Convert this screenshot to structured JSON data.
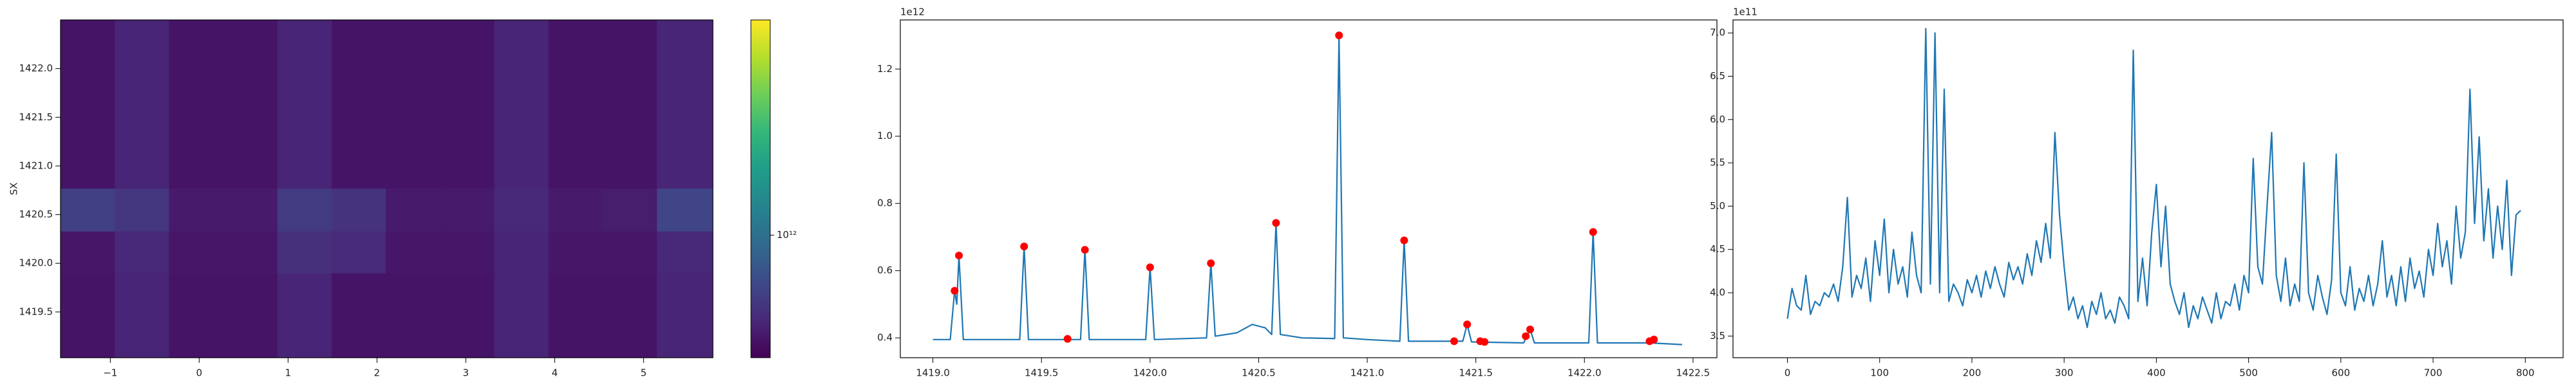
{
  "chart_data": [
    {
      "type": "heatmap",
      "ylabel": "SX",
      "xbins": [
        -1.56,
        -0.95,
        -0.34,
        0.27,
        0.88,
        1.49,
        2.1,
        2.71,
        3.32,
        3.93,
        4.54,
        5.15,
        5.78
      ],
      "ybins": [
        1419.03,
        1419.46,
        1419.9,
        1420.33,
        1420.77,
        1421.2,
        1421.63,
        1422.07,
        1422.5
      ],
      "z": [
        [
          460000000000.0,
          520000000000.0,
          460000000000.0,
          460000000000.0,
          520000000000.0,
          460000000000.0,
          460000000000.0,
          460000000000.0,
          520000000000.0,
          460000000000.0,
          460000000000.0,
          520000000000.0
        ],
        [
          460000000000.0,
          520000000000.0,
          460000000000.0,
          460000000000.0,
          520000000000.0,
          460000000000.0,
          460000000000.0,
          460000000000.0,
          520000000000.0,
          460000000000.0,
          460000000000.0,
          520000000000.0
        ],
        [
          470000000000.0,
          530000000000.0,
          470000000000.0,
          470000000000.0,
          560000000000.0,
          540000000000.0,
          470000000000.0,
          470000000000.0,
          520000000000.0,
          470000000000.0,
          470000000000.0,
          530000000000.0
        ],
        [
          650000000000.0,
          600000000000.0,
          480000000000.0,
          480000000000.0,
          620000000000.0,
          580000000000.0,
          480000000000.0,
          480000000000.0,
          530000000000.0,
          480000000000.0,
          490000000000.0,
          680000000000.0
        ],
        [
          460000000000.0,
          520000000000.0,
          460000000000.0,
          460000000000.0,
          520000000000.0,
          460000000000.0,
          460000000000.0,
          460000000000.0,
          520000000000.0,
          460000000000.0,
          460000000000.0,
          520000000000.0
        ],
        [
          460000000000.0,
          520000000000.0,
          460000000000.0,
          460000000000.0,
          520000000000.0,
          460000000000.0,
          460000000000.0,
          460000000000.0,
          520000000000.0,
          460000000000.0,
          460000000000.0,
          520000000000.0
        ],
        [
          460000000000.0,
          520000000000.0,
          460000000000.0,
          460000000000.0,
          520000000000.0,
          460000000000.0,
          460000000000.0,
          460000000000.0,
          520000000000.0,
          460000000000.0,
          460000000000.0,
          520000000000.0
        ],
        [
          460000000000.0,
          520000000000.0,
          460000000000.0,
          460000000000.0,
          520000000000.0,
          460000000000.0,
          460000000000.0,
          460000000000.0,
          520000000000.0,
          460000000000.0,
          460000000000.0,
          520000000000.0
        ]
      ],
      "colormap": "viridis",
      "zscale": "log",
      "zlim": [
        400000000000.0,
        5000000000000.0
      ],
      "zticks": [
        {
          "value": 1000000000000.0,
          "label": "10¹²"
        }
      ],
      "xlim": [
        -1.56,
        5.78
      ],
      "xticks": [
        {
          "value": -1,
          "label": "−1"
        },
        0,
        1,
        2,
        3,
        4,
        5
      ],
      "ylim": [
        1419.03,
        1422.5
      ],
      "yticks": [
        1419.5,
        {
          "value": 1420,
          "label": "1420.0"
        },
        1420.5,
        {
          "value": 1421,
          "label": "1421.0"
        },
        1421.5,
        {
          "value": 1422,
          "label": "1422.0"
        }
      ]
    },
    {
      "type": "line",
      "y_offset_label": "1e12",
      "series": [
        {
          "color": "#1f77b4",
          "x": [
            1419.0,
            1419.08,
            1419.1,
            1419.11,
            1419.12,
            1419.14,
            1419.4,
            1419.42,
            1419.44,
            1419.68,
            1419.7,
            1419.72,
            1419.98,
            1420.0,
            1420.02,
            1420.26,
            1420.28,
            1420.3,
            1420.4,
            1420.47,
            1420.53,
            1420.56,
            1420.58,
            1420.6,
            1420.7,
            1420.85,
            1420.87,
            1420.89,
            1421.0,
            1421.15,
            1421.17,
            1421.19,
            1421.44,
            1421.46,
            1421.48,
            1421.72,
            1421.75,
            1421.77,
            1422.02,
            1422.04,
            1422.06,
            1422.3,
            1422.45
          ],
          "values": [
            0.395,
            0.395,
            0.54,
            0.5,
            0.645,
            0.395,
            0.395,
            0.672,
            0.395,
            0.395,
            0.662,
            0.395,
            0.395,
            0.61,
            0.395,
            0.4,
            0.622,
            0.405,
            0.415,
            0.44,
            0.43,
            0.41,
            0.742,
            0.41,
            0.4,
            0.398,
            1.3,
            0.4,
            0.395,
            0.39,
            0.69,
            0.39,
            0.39,
            0.44,
            0.388,
            0.385,
            0.425,
            0.385,
            0.385,
            0.715,
            0.385,
            0.385,
            0.38
          ]
        },
        {
          "color": "red",
          "marker": "o",
          "x": [
            1419.1,
            1419.12,
            1419.42,
            1419.62,
            1419.7,
            1420.0,
            1420.28,
            1420.58,
            1420.87,
            1421.17,
            1421.4,
            1421.46,
            1421.52,
            1421.54,
            1421.73,
            1421.75,
            1422.04,
            1422.3,
            1422.32
          ],
          "values": [
            0.54,
            0.645,
            0.672,
            0.397,
            0.662,
            0.61,
            0.622,
            0.742,
            1.3,
            0.69,
            0.39,
            0.44,
            0.39,
            0.388,
            0.405,
            0.425,
            0.715,
            0.39,
            0.395
          ]
        }
      ],
      "xlim": [
        1418.85,
        1422.61
      ],
      "xticks": [
        {
          "value": 1419,
          "label": "1419.0"
        },
        1419.5,
        {
          "value": 1420,
          "label": "1420.0"
        },
        1420.5,
        {
          "value": 1421,
          "label": "1421.0"
        },
        1421.5,
        {
          "value": 1422,
          "label": "1422.0"
        },
        1422.5
      ],
      "ylim": [
        0.341,
        1.346
      ],
      "yticks": [
        0.4,
        0.6,
        0.8,
        {
          "value": 1.0,
          "label": "1.0"
        },
        1.2
      ]
    },
    {
      "type": "line",
      "y_offset_label": "1e11",
      "series": [
        {
          "color": "#1f77b4",
          "x": [
            0,
            5,
            10,
            15,
            20,
            25,
            30,
            35,
            40,
            45,
            50,
            55,
            60,
            65,
            70,
            75,
            80,
            85,
            90,
            95,
            100,
            105,
            110,
            115,
            120,
            125,
            130,
            135,
            140,
            145,
            150,
            155,
            160,
            165,
            170,
            175,
            180,
            185,
            190,
            195,
            200,
            205,
            210,
            215,
            220,
            225,
            230,
            235,
            240,
            245,
            250,
            255,
            260,
            265,
            270,
            275,
            280,
            285,
            290,
            295,
            300,
            305,
            310,
            315,
            320,
            325,
            330,
            335,
            340,
            345,
            350,
            355,
            360,
            365,
            370,
            375,
            380,
            385,
            390,
            395,
            400,
            405,
            410,
            415,
            420,
            425,
            430,
            435,
            440,
            445,
            450,
            455,
            460,
            465,
            470,
            475,
            480,
            485,
            490,
            495,
            500,
            505,
            510,
            515,
            520,
            525,
            530,
            535,
            540,
            545,
            550,
            555,
            560,
            565,
            570,
            575,
            580,
            585,
            590,
            595,
            600,
            605,
            610,
            615,
            620,
            625,
            630,
            635,
            640,
            645,
            650,
            655,
            660,
            665,
            670,
            675,
            680,
            685,
            690,
            695,
            700,
            705,
            710,
            715,
            720,
            725,
            730,
            735,
            740,
            745,
            750,
            755,
            760,
            765,
            770,
            775,
            780,
            785,
            790,
            795
          ],
          "values": [
            3.7,
            4.05,
            3.85,
            3.8,
            4.2,
            3.75,
            3.9,
            3.85,
            4.0,
            3.95,
            4.1,
            3.9,
            4.3,
            5.1,
            3.95,
            4.2,
            4.05,
            4.4,
            3.9,
            4.6,
            4.2,
            4.85,
            4.0,
            4.5,
            4.1,
            4.3,
            3.95,
            4.7,
            4.2,
            4.0,
            7.05,
            4.1,
            7.0,
            4.0,
            6.35,
            3.9,
            4.1,
            4.0,
            3.85,
            4.15,
            4.0,
            4.2,
            3.95,
            4.25,
            4.05,
            4.3,
            4.1,
            3.95,
            4.35,
            4.15,
            4.3,
            4.1,
            4.45,
            4.2,
            4.6,
            4.35,
            4.8,
            4.4,
            5.85,
            4.9,
            4.3,
            3.8,
            3.95,
            3.7,
            3.85,
            3.6,
            3.9,
            3.75,
            4.0,
            3.7,
            3.8,
            3.65,
            3.95,
            3.85,
            3.7,
            6.8,
            3.9,
            4.4,
            3.85,
            4.7,
            5.25,
            4.3,
            5.0,
            4.1,
            3.9,
            3.75,
            4.0,
            3.6,
            3.85,
            3.7,
            3.95,
            3.8,
            3.65,
            4.0,
            3.7,
            3.9,
            3.85,
            4.1,
            3.8,
            4.2,
            4.0,
            5.55,
            4.3,
            4.1,
            5.0,
            5.85,
            4.2,
            3.9,
            4.4,
            3.85,
            4.1,
            3.9,
            5.5,
            4.0,
            3.8,
            4.2,
            3.95,
            3.75,
            4.15,
            5.6,
            4.0,
            3.85,
            4.3,
            3.8,
            4.05,
            3.9,
            4.2,
            3.85,
            4.1,
            4.6,
            3.95,
            4.2,
            3.85,
            4.3,
            3.9,
            4.4,
            4.05,
            4.25,
            3.95,
            4.5,
            4.2,
            4.8,
            4.3,
            4.6,
            4.1,
            5.0,
            4.4,
            4.7,
            6.35,
            4.8,
            5.8,
            4.6,
            5.2,
            4.4,
            5.0,
            4.5,
            5.3,
            4.2,
            4.9,
            4.95
          ]
        }
      ],
      "xlim": [
        -59,
        841
      ],
      "xticks": [
        0,
        100,
        200,
        300,
        400,
        500,
        600,
        700,
        800
      ],
      "ylim": [
        3.25,
        7.15
      ],
      "yticks": [
        3.5,
        {
          "value": 4,
          "label": "4.0"
        },
        4.5,
        {
          "value": 5,
          "label": "5.0"
        },
        5.5,
        {
          "value": 6,
          "label": "6.0"
        },
        6.5,
        {
          "value": 7,
          "label": "7.0"
        }
      ]
    }
  ]
}
